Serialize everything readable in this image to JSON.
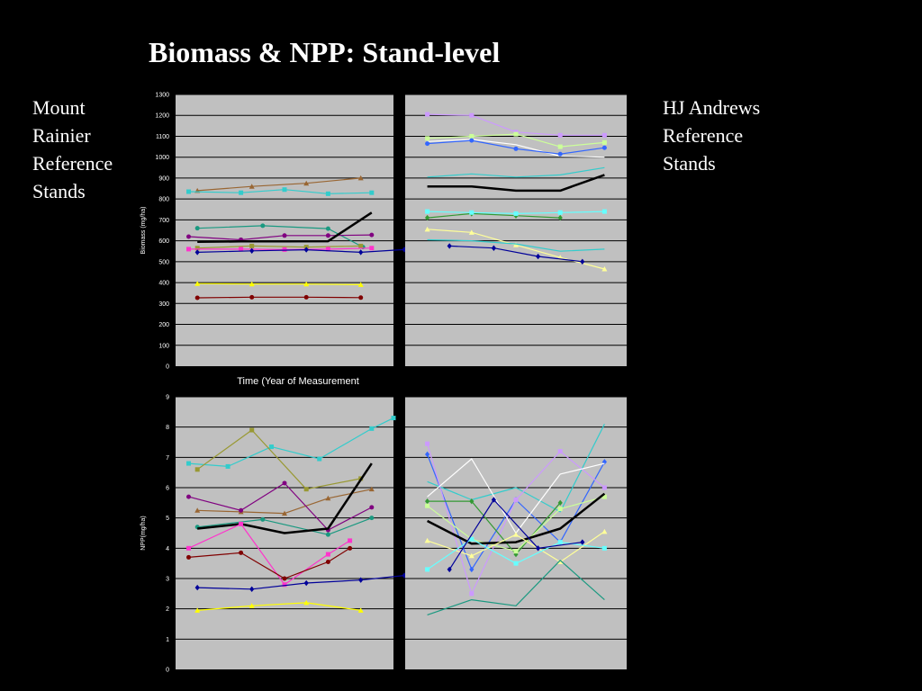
{
  "slide": {
    "title": "Biomass & NPP: Stand-level",
    "left_label": [
      "Mount",
      "Rainier",
      "Reference",
      "Stands"
    ],
    "right_label": [
      "HJ Andrews",
      "Reference",
      "Stands"
    ]
  },
  "colors": {
    "background": "#000000",
    "plot_area": "#c0c0c0",
    "gridline": "#000000",
    "text": "#ffffff",
    "mean_line": "#000000"
  },
  "chart_data": [
    {
      "id": "biomass-mount-rainier",
      "type": "line",
      "title": "",
      "xlabel": "Time (Year of Measurement",
      "ylabel": "Biomass (mg/ha)",
      "ylim": [
        0,
        1300
      ],
      "yticks": [
        0,
        100,
        200,
        300,
        400,
        500,
        600,
        700,
        800,
        900,
        1000,
        1100,
        1200,
        1300
      ],
      "xlim": [
        0,
        5
      ],
      "grid": true,
      "series": [
        {
          "color": "#996633",
          "marker": "triangle",
          "x": [
            0.5,
            1.75,
            3,
            4.25
          ],
          "y": [
            840,
            860,
            875,
            900
          ]
        },
        {
          "color": "#33cccc",
          "marker": "square",
          "x": [
            0.3,
            1.5,
            2.5,
            3.5,
            4.5
          ],
          "y": [
            835,
            830,
            845,
            825,
            830
          ]
        },
        {
          "color": "#1a9980",
          "marker": "circle",
          "x": [
            0.5,
            2,
            3.5,
            4.3
          ],
          "y": [
            660,
            672,
            658,
            570
          ]
        },
        {
          "color": "#800080",
          "marker": "circle",
          "x": [
            0.3,
            1.5,
            2.5,
            3.5,
            4.5
          ],
          "y": [
            620,
            605,
            625,
            625,
            628
          ]
        },
        {
          "color": "#000000",
          "marker": "none",
          "bold": true,
          "x": [
            0.5,
            1.5,
            2.5,
            3.5,
            4.5
          ],
          "y": [
            595,
            597,
            597,
            598,
            735
          ]
        },
        {
          "color": "#999933",
          "marker": "square",
          "x": [
            0.5,
            1.75,
            3,
            4.25
          ],
          "y": [
            565,
            575,
            570,
            575
          ]
        },
        {
          "color": "#ff33cc",
          "marker": "square",
          "x": [
            0.3,
            1.5,
            2.5,
            3.5,
            4.5
          ],
          "y": [
            560,
            560,
            558,
            560,
            565
          ]
        },
        {
          "color": "#000099",
          "marker": "diamond",
          "x": [
            0.5,
            1.75,
            3,
            4.25,
            5.25
          ],
          "y": [
            545,
            552,
            557,
            545,
            558
          ]
        },
        {
          "color": "#ffff00",
          "marker": "triangle",
          "x": [
            0.5,
            1.75,
            3,
            4.25
          ],
          "y": [
            395,
            393,
            393,
            390
          ]
        },
        {
          "color": "#800000",
          "marker": "circle",
          "x": [
            0.5,
            1.75,
            3,
            4.25
          ],
          "y": [
            327,
            330,
            330,
            328
          ]
        }
      ]
    },
    {
      "id": "biomass-hj-andrews",
      "type": "line",
      "title": "",
      "ylim": [
        0,
        1300
      ],
      "xlim": [
        0,
        5
      ],
      "grid": true,
      "series": [
        {
          "color": "#cc99ff",
          "marker": "square",
          "x": [
            0.5,
            1.5,
            2.5,
            3.5,
            4.5
          ],
          "y": [
            1205,
            1200,
            1120,
            1105,
            1105
          ]
        },
        {
          "color": "#ccff99",
          "marker": "square",
          "x": [
            0.5,
            1.5,
            2.5,
            3.5,
            4.5
          ],
          "y": [
            1090,
            1100,
            1110,
            1050,
            1070
          ]
        },
        {
          "color": "#ffffff",
          "marker": "none",
          "x": [
            0.5,
            1.5,
            2.5,
            3.5,
            4.5
          ],
          "y": [
            1075,
            1085,
            1060,
            1005,
            1000
          ]
        },
        {
          "color": "#3366ff",
          "marker": "circle",
          "x": [
            0.5,
            1.5,
            2.5,
            3.5,
            4.5
          ],
          "y": [
            1065,
            1080,
            1040,
            1015,
            1045
          ]
        },
        {
          "color": "#33cccc",
          "marker": "none",
          "x": [
            0.5,
            1.5,
            2.5,
            3.5,
            4.5
          ],
          "y": [
            905,
            920,
            905,
            915,
            950
          ]
        },
        {
          "color": "#000000",
          "marker": "none",
          "bold": true,
          "x": [
            0.5,
            1.5,
            2.5,
            3.5,
            4.5
          ],
          "y": [
            860,
            860,
            840,
            840,
            915
          ]
        },
        {
          "color": "#339933",
          "marker": "diamond",
          "x": [
            0.5,
            1.5,
            2.5,
            3.5
          ],
          "y": [
            710,
            730,
            720,
            710
          ]
        },
        {
          "color": "#66ffff",
          "marker": "square",
          "x": [
            0.5,
            1.5,
            2.5,
            3.5,
            4.5
          ],
          "y": [
            740,
            735,
            730,
            735,
            740
          ]
        },
        {
          "color": "#ffff99",
          "marker": "triangle",
          "x": [
            0.5,
            1.5,
            2.5,
            3.5,
            4.5
          ],
          "y": [
            655,
            640,
            580,
            520,
            465
          ]
        },
        {
          "color": "#33cccc",
          "marker": "none",
          "x": [
            0.5,
            1.5,
            2.5,
            3.5,
            4.5
          ],
          "y": [
            605,
            600,
            585,
            550,
            560
          ]
        },
        {
          "color": "#000099",
          "marker": "diamond",
          "x": [
            1,
            2,
            3,
            4
          ],
          "y": [
            575,
            565,
            525,
            500
          ]
        }
      ]
    },
    {
      "id": "npp-mount-rainier",
      "type": "line",
      "title": "",
      "ylabel": "NPP(mg/ha)",
      "ylim": [
        0,
        9
      ],
      "yticks": [
        0,
        1,
        2,
        3,
        4,
        5,
        6,
        7,
        8,
        9
      ],
      "xlim": [
        0,
        5
      ],
      "grid": true,
      "series": [
        {
          "color": "#33cccc",
          "marker": "square",
          "x": [
            0.3,
            1.2,
            2.2,
            3.3,
            4.5,
            5
          ],
          "y": [
            6.8,
            6.7,
            7.35,
            6.95,
            7.95,
            8.3
          ]
        },
        {
          "color": "#999933",
          "marker": "square",
          "x": [
            0.5,
            1.75,
            3,
            4.25
          ],
          "y": [
            6.6,
            7.9,
            5.95,
            6.3
          ]
        },
        {
          "color": "#996633",
          "marker": "triangle",
          "x": [
            0.5,
            1.5,
            2.5,
            3.5,
            4.5
          ],
          "y": [
            5.25,
            5.2,
            5.15,
            5.65,
            5.95
          ]
        },
        {
          "color": "#800080",
          "marker": "circle",
          "x": [
            0.3,
            1.5,
            2.5,
            3.5,
            4.5
          ],
          "y": [
            5.7,
            5.25,
            6.15,
            4.6,
            5.35
          ]
        },
        {
          "color": "#1a9980",
          "marker": "circle",
          "x": [
            0.5,
            2,
            3.5,
            4.5
          ],
          "y": [
            4.7,
            4.95,
            4.45,
            5
          ]
        },
        {
          "color": "#000000",
          "marker": "none",
          "bold": true,
          "x": [
            0.5,
            1.5,
            2.5,
            3.5,
            4.5
          ],
          "y": [
            4.65,
            4.8,
            4.5,
            4.65,
            6.8
          ]
        },
        {
          "color": "#ff33cc",
          "marker": "square",
          "x": [
            0.3,
            1.5,
            2.5,
            3.5,
            4
          ],
          "y": [
            4,
            4.8,
            2.8,
            3.8,
            4.25
          ]
        },
        {
          "color": "#800000",
          "marker": "circle",
          "x": [
            0.3,
            1.5,
            2.5,
            3.5,
            4
          ],
          "y": [
            3.7,
            3.85,
            3,
            3.55,
            4
          ]
        },
        {
          "color": "#000099",
          "marker": "diamond",
          "x": [
            0.5,
            1.75,
            3,
            4.25,
            5.25
          ],
          "y": [
            2.7,
            2.65,
            2.85,
            2.95,
            3.1
          ]
        },
        {
          "color": "#ffff00",
          "marker": "triangle",
          "x": [
            0.5,
            1.75,
            3,
            4.25
          ],
          "y": [
            1.95,
            2.1,
            2.2,
            1.95
          ]
        }
      ]
    },
    {
      "id": "npp-hj-andrews",
      "type": "line",
      "title": "",
      "ylim": [
        0,
        9
      ],
      "xlim": [
        0,
        5
      ],
      "grid": true,
      "series": [
        {
          "color": "#33cccc",
          "marker": "none",
          "x": [
            0.5,
            1.5,
            2.5,
            3.5,
            4.5
          ],
          "y": [
            6.2,
            5.6,
            6,
            5.2,
            8.1
          ]
        },
        {
          "color": "#3366ff",
          "marker": "diamond",
          "x": [
            0.5,
            1.5,
            2.5,
            3.5,
            4.5
          ],
          "y": [
            7.1,
            3.3,
            5.6,
            4.2,
            6.85
          ]
        },
        {
          "color": "#cc99ff",
          "marker": "square",
          "x": [
            0.5,
            1.5,
            2.5,
            3.5,
            4.5
          ],
          "y": [
            7.45,
            2.5,
            5.6,
            7.2,
            6
          ]
        },
        {
          "color": "#ffffff",
          "marker": "none",
          "x": [
            0.5,
            1.5,
            2.5,
            3.5,
            4.5
          ],
          "y": [
            5.7,
            6.95,
            4.5,
            6.45,
            6.8
          ]
        },
        {
          "color": "#339933",
          "marker": "diamond",
          "x": [
            0.5,
            1.5,
            2.5,
            3.5
          ],
          "y": [
            5.55,
            5.55,
            3.8,
            5.5
          ]
        },
        {
          "color": "#ccff99",
          "marker": "square",
          "x": [
            0.5,
            1.5,
            2.5,
            3.5,
            4.5
          ],
          "y": [
            5.4,
            4.3,
            3.9,
            5.3,
            5.7
          ]
        },
        {
          "color": "#000000",
          "marker": "none",
          "bold": true,
          "x": [
            0.5,
            1.5,
            2.5,
            3.5,
            4.5
          ],
          "y": [
            4.9,
            4.15,
            4.2,
            4.65,
            5.8
          ]
        },
        {
          "color": "#ffff99",
          "marker": "triangle",
          "x": [
            0.5,
            1.5,
            2.5,
            3.5,
            4.5
          ],
          "y": [
            4.25,
            3.75,
            4.45,
            3.55,
            4.55
          ]
        },
        {
          "color": "#66ffff",
          "marker": "square",
          "x": [
            0.5,
            1.5,
            2.5,
            3.5,
            4.5
          ],
          "y": [
            3.3,
            4.3,
            3.5,
            4.2,
            4
          ]
        },
        {
          "color": "#000099",
          "marker": "diamond",
          "x": [
            1,
            2,
            3,
            4
          ],
          "y": [
            3.3,
            5.6,
            4,
            4.2
          ]
        },
        {
          "color": "#1a9980",
          "marker": "none",
          "x": [
            0.5,
            1.5,
            2.5,
            3.5,
            4.5
          ],
          "y": [
            1.8,
            2.3,
            2.1,
            3.6,
            2.3
          ]
        }
      ]
    }
  ]
}
